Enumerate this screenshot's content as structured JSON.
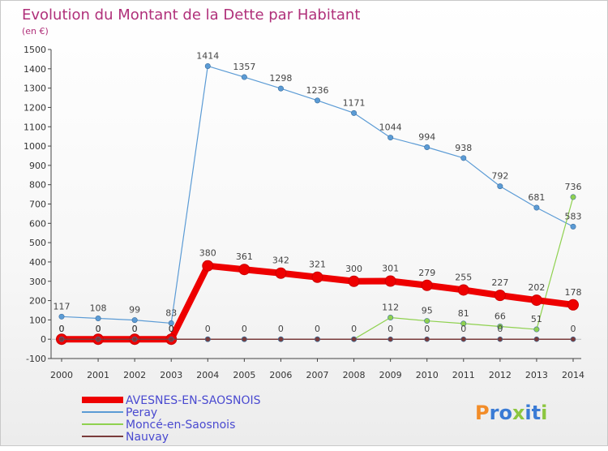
{
  "chart_data": {
    "type": "line",
    "title": "Evolution du Montant de la Dette par Habitant",
    "subtitle": "(en €)",
    "x": [
      "2000",
      "2001",
      "2002",
      "2003",
      "2004",
      "2005",
      "2006",
      "2007",
      "2008",
      "2009",
      "2010",
      "2011",
      "2012",
      "2013",
      "2014"
    ],
    "ylim": [
      -100,
      1500
    ],
    "yticks": [
      -100,
      0,
      100,
      200,
      300,
      400,
      500,
      600,
      700,
      800,
      900,
      1000,
      1100,
      1200,
      1300,
      1400,
      1500
    ],
    "grid": false,
    "legend_placement": "bottom-left",
    "series": [
      {
        "name": "AVESNES-EN-SAOSNOIS",
        "color": "#ee0000",
        "values": [
          0,
          0,
          0,
          0,
          380,
          361,
          342,
          321,
          300,
          301,
          279,
          255,
          227,
          202,
          178
        ],
        "labels": [
          "0",
          "0",
          "0",
          "0",
          "380",
          "361",
          "342",
          "321",
          "300",
          "301",
          "279",
          "255",
          "227",
          "202",
          "178"
        ]
      },
      {
        "name": "Peray",
        "color": "#5b9bd5",
        "values": [
          117,
          108,
          99,
          83,
          1414,
          1357,
          1298,
          1236,
          1171,
          1044,
          994,
          938,
          792,
          681,
          583
        ],
        "labels": [
          "117",
          "108",
          "99",
          "83",
          "1414",
          "1357",
          "1298",
          "1236",
          "1171",
          "1044",
          "994",
          "938",
          "792",
          "681",
          "583"
        ]
      },
      {
        "name": "Moncé-en-Saosnois",
        "color": "#8fd14f",
        "values": [
          0,
          0,
          0,
          0,
          0,
          0,
          0,
          0,
          0,
          112,
          95,
          81,
          66,
          51,
          736
        ],
        "labels": [
          "0",
          "0",
          "0",
          "0",
          "",
          "",
          "",
          "",
          "",
          "112",
          "95",
          "81",
          "66",
          "51",
          "736"
        ]
      },
      {
        "name": "Nauvay",
        "color": "#7a3b3b",
        "values": [
          0,
          0,
          0,
          0,
          0,
          0,
          0,
          0,
          0,
          0,
          0,
          0,
          0,
          0,
          0
        ],
        "labels": [
          "0",
          "0",
          "0",
          "0",
          "0",
          "0",
          "0",
          "0",
          "0",
          "0",
          "0",
          "0",
          "0",
          "",
          "0"
        ]
      }
    ]
  },
  "brand": {
    "logo_text": "Proxiti",
    "colors": [
      "#f28c28",
      "#3a7bd5",
      "#8cc63f"
    ]
  }
}
